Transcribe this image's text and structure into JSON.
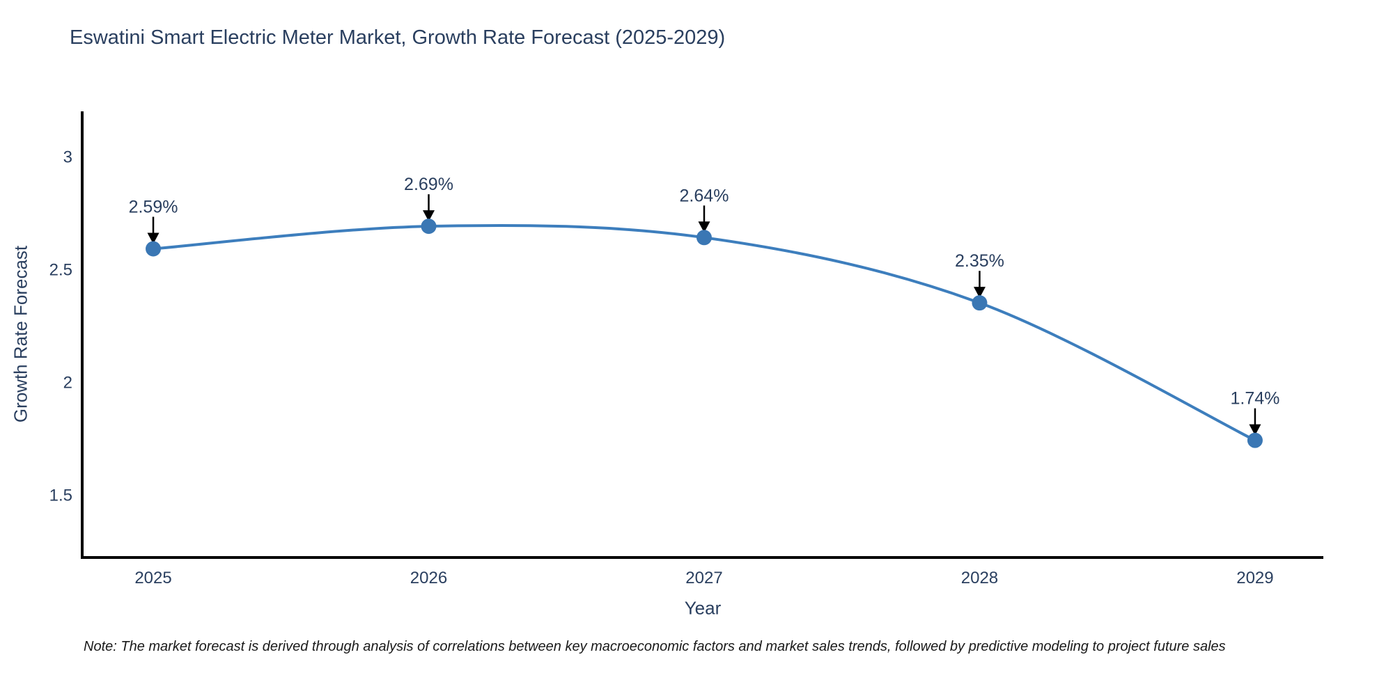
{
  "chart": {
    "title": "Eswatini Smart Electric Meter Market, Growth Rate Forecast (2025-2029)",
    "xlabel": "Year",
    "ylabel": "Growth Rate Forecast"
  },
  "note": "Note: The market forecast is derived through analysis of correlations between key macroeconomic factors and market sales trends, followed by predictive modeling to project future sales",
  "chart_data": {
    "type": "line",
    "title": "Eswatini Smart Electric Meter Market, Growth Rate Forecast (2025-2029)",
    "xlabel": "Year",
    "ylabel": "Growth Rate Forecast",
    "x": [
      2025,
      2026,
      2027,
      2028,
      2029
    ],
    "values": [
      2.59,
      2.69,
      2.64,
      2.35,
      1.74
    ],
    "point_labels": [
      "2.59%",
      "2.69%",
      "2.64%",
      "2.35%",
      "1.74%"
    ],
    "x_tick_labels": [
      "2025",
      "2026",
      "2027",
      "2028",
      "2029"
    ],
    "y_ticks": [
      3,
      2.5,
      2,
      1.5
    ],
    "y_tick_labels": [
      "3",
      "2.5",
      "2",
      "1.5"
    ],
    "xlim": [
      2024.742,
      2029.248
    ],
    "ylim": [
      1.22,
      3.2
    ],
    "grid": false,
    "legend": false,
    "line_shape": "spline",
    "line_color": "#3d7ebd",
    "marker_color": "#3a77b4",
    "annotation_color": "#2a3f5f",
    "arrow_color": "#000000",
    "axis_line_color": "#000000",
    "tick_label_color": "#2a3f5f"
  }
}
